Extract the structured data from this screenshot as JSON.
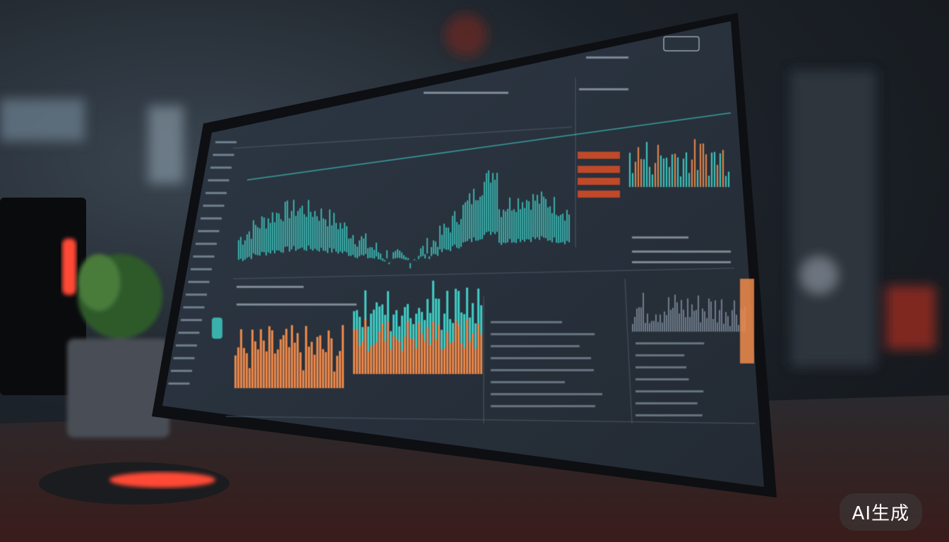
{
  "watermark": {
    "text": "AI生成"
  },
  "colors": {
    "screen": "#28313c",
    "bezel": "#0d0f12",
    "teal": "#3fd0c8",
    "orange": "#f08a4b",
    "red_glow": "#ff4a35",
    "gray_bars": "#8a9aa8"
  }
}
